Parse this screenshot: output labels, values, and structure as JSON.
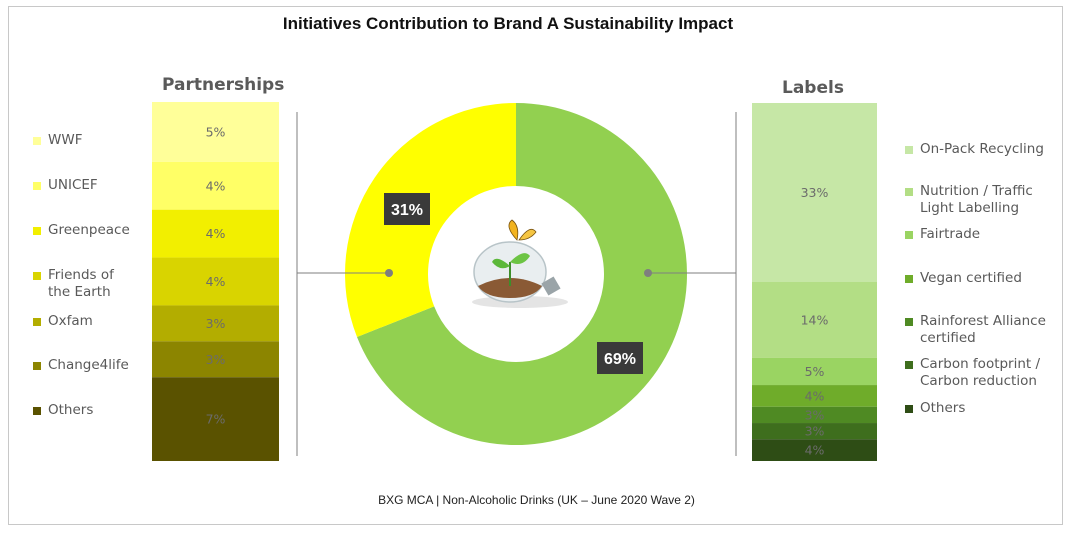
{
  "title": "Initiatives Contribution to Brand A Sustainability Impact",
  "footer": "BXG MCA | Non-Alcoholic Drinks (UK – June 2020 Wave 2)",
  "chart_data": [
    {
      "type": "pie",
      "variant": "donut",
      "center_icon": "lightbulb-butterfly-icon",
      "slices": [
        {
          "value": 69,
          "label": "69%",
          "color": "#92d050",
          "links_to": "Labels"
        },
        {
          "value": 31,
          "label": "31%",
          "color": "#ffff00",
          "links_to": "Partnerships"
        }
      ]
    },
    {
      "type": "bar",
      "variant": "stacked-100",
      "title": "Partnerships",
      "legend": "left",
      "segments": [
        {
          "name": "WWF",
          "value": 5,
          "label": "5%",
          "color": "#ffff99"
        },
        {
          "name": "UNICEF",
          "value": 4,
          "label": "4%",
          "color": "#ffff66"
        },
        {
          "name": "Greenpeace",
          "value": 4,
          "label": "4%",
          "color": "#f2ef00"
        },
        {
          "name": "Friends of the Earth",
          "lines": [
            "Friends of",
            "the Earth"
          ],
          "value": 4,
          "label": "4%",
          "color": "#d9d400"
        },
        {
          "name": "Oxfam",
          "value": 3,
          "label": "3%",
          "color": "#b3ad00"
        },
        {
          "name": "Change4life",
          "value": 3,
          "label": "3%",
          "color": "#8c8500"
        },
        {
          "name": "Others",
          "value": 7,
          "label": "7%",
          "color": "#5a5200"
        }
      ]
    },
    {
      "type": "bar",
      "variant": "stacked-100",
      "title": "Labels",
      "legend": "right",
      "segments": [
        {
          "name": "On-Pack Recycling",
          "value": 33,
          "label": "33%",
          "color": "#c6e7a6"
        },
        {
          "name": "Nutrition / Traffic Light Labelling",
          "lines": [
            "Nutrition / Traffic",
            "Light Labelling"
          ],
          "value": 14,
          "label": "14%",
          "color": "#b3de85"
        },
        {
          "name": "Fairtrade",
          "value": 5,
          "label": "5%",
          "color": "#9ad462"
        },
        {
          "name": "Vegan certified",
          "value": 4,
          "label": "4%",
          "color": "#6fac2a"
        },
        {
          "name": "Rainforest Alliance certified",
          "lines": [
            "Rainforest Alliance",
            "certified"
          ],
          "value": 3,
          "label": "3%",
          "color": "#4f8a23"
        },
        {
          "name": "Carbon footprint / Carbon reduction",
          "lines": [
            "Carbon footprint /",
            "Carbon reduction"
          ],
          "value": 3,
          "label": "3%",
          "color": "#3e6e1d"
        },
        {
          "name": "Others",
          "value": 4,
          "label": "4%",
          "color": "#2e4d15"
        }
      ]
    }
  ]
}
